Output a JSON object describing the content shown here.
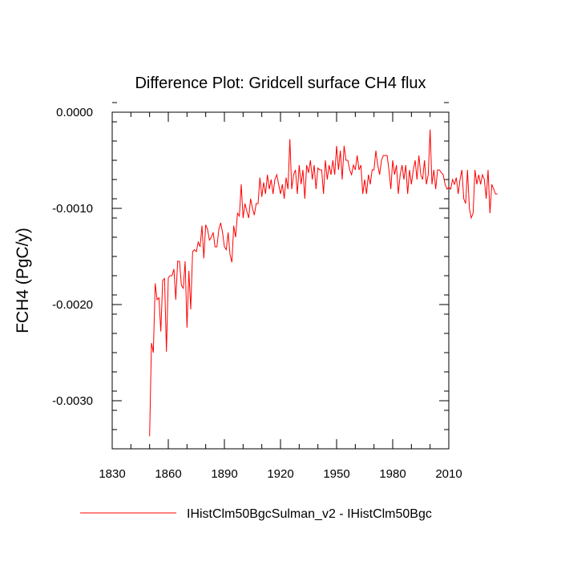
{
  "chart_data": {
    "type": "line",
    "title": "Difference Plot: Gridcell surface CH4 flux",
    "ylabel": "FCH4  (PgC/y)",
    "xlabel": "",
    "xlim": [
      1830,
      2010
    ],
    "ylim": [
      -0.0035,
      0.0
    ],
    "x_ticks": [
      1830,
      1860,
      1890,
      1920,
      1950,
      1980,
      2010
    ],
    "y_ticks": [
      0.0,
      -0.001,
      -0.002,
      -0.003
    ],
    "y_tick_labels": [
      "0.0000",
      "-0.0010",
      "-0.0020",
      "-0.0030"
    ],
    "x_minor_step": 10,
    "y_minor_step": 0.0002,
    "grid": false,
    "legend_position": "bottom",
    "series": [
      {
        "name": "IHistClm50BgcSulman_v2 - IHistClm50Bgc",
        "color": "#ff0000",
        "x_start": 1850,
        "x_step": 1,
        "values": [
          -0.00337,
          -0.0024,
          -0.0025,
          -0.00178,
          -0.00195,
          -0.00193,
          -0.00228,
          -0.00175,
          -0.00173,
          -0.00249,
          -0.00172,
          -0.0017,
          -0.0017,
          -0.00163,
          -0.00195,
          -0.00155,
          -0.00155,
          -0.0018,
          -0.00183,
          -0.00155,
          -0.00224,
          -0.00165,
          -0.00205,
          -0.00145,
          -0.00143,
          -0.00145,
          -0.00135,
          -0.0014,
          -0.00118,
          -0.00152,
          -0.00117,
          -0.00122,
          -0.00133,
          -0.0013,
          -0.00125,
          -0.0014,
          -0.0014,
          -0.00122,
          -0.00115,
          -0.00125,
          -0.0014,
          -0.00143,
          -0.00125,
          -0.00148,
          -0.00156,
          -0.00118,
          -0.0013,
          -0.00105,
          -0.00108,
          -0.00075,
          -0.0011,
          -0.00095,
          -0.00103,
          -0.0011,
          -0.0009,
          -0.001,
          -0.00107,
          -0.00095,
          -0.00095,
          -0.00068,
          -0.00088,
          -0.00073,
          -0.00085,
          -0.00065,
          -0.0008,
          -0.0007,
          -0.00085,
          -0.0007,
          -0.00065,
          -0.00075,
          -0.00085,
          -0.00075,
          -0.0009,
          -0.00068,
          -0.0008,
          -0.00028,
          -0.0008,
          -0.00065,
          -0.0006,
          -0.00085,
          -0.00055,
          -0.00075,
          -0.0006,
          -0.0009,
          -0.00055,
          -0.00063,
          -0.0005,
          -0.0007,
          -0.00055,
          -0.0008,
          -0.00058,
          -0.0006,
          -0.0006,
          -0.00085,
          -0.0005,
          -0.0007,
          -0.00055,
          -0.00065,
          -0.0005,
          -0.00065,
          -0.00035,
          -0.0006,
          -0.0004,
          -0.0007,
          -0.00035,
          -0.0005,
          -0.0005,
          -0.0006,
          -0.00065,
          -0.00055,
          -0.0006,
          -0.00045,
          -0.0006,
          -0.00055,
          -0.00085,
          -0.0007,
          -0.00085,
          -0.00065,
          -0.00075,
          -0.0006,
          -0.0006,
          -0.0004,
          -0.00055,
          -0.00065,
          -0.0005,
          -0.00045,
          -0.00045,
          -0.00045,
          -0.0006,
          -0.0008,
          -0.0005,
          -0.00065,
          -0.00055,
          -0.00085,
          -0.00065,
          -0.00055,
          -0.0007,
          -0.00055,
          -0.00085,
          -0.0006,
          -0.00075,
          -0.0006,
          -0.0005,
          -0.0007,
          -0.00045,
          -0.00065,
          -0.0007,
          -0.0005,
          -0.00075,
          -0.00065,
          -0.00018,
          -0.00075,
          -0.0006,
          -0.0008,
          -0.0006,
          -0.0006,
          -0.00063,
          -0.00065,
          -0.00075,
          -0.0008,
          -0.00078,
          -0.0008,
          -0.0007,
          -0.00075,
          -0.00068,
          -0.00085,
          -0.0007,
          -0.0006,
          -0.0009,
          -0.00095,
          -0.0006,
          -0.001,
          -0.0011,
          -0.00105,
          -0.0006,
          -0.00075,
          -0.00065,
          -0.00075,
          -0.00065,
          -0.0007,
          -0.0009,
          -0.0006,
          -0.00105,
          -0.00075,
          -0.0008,
          -0.00085,
          -0.00085
        ]
      }
    ]
  }
}
